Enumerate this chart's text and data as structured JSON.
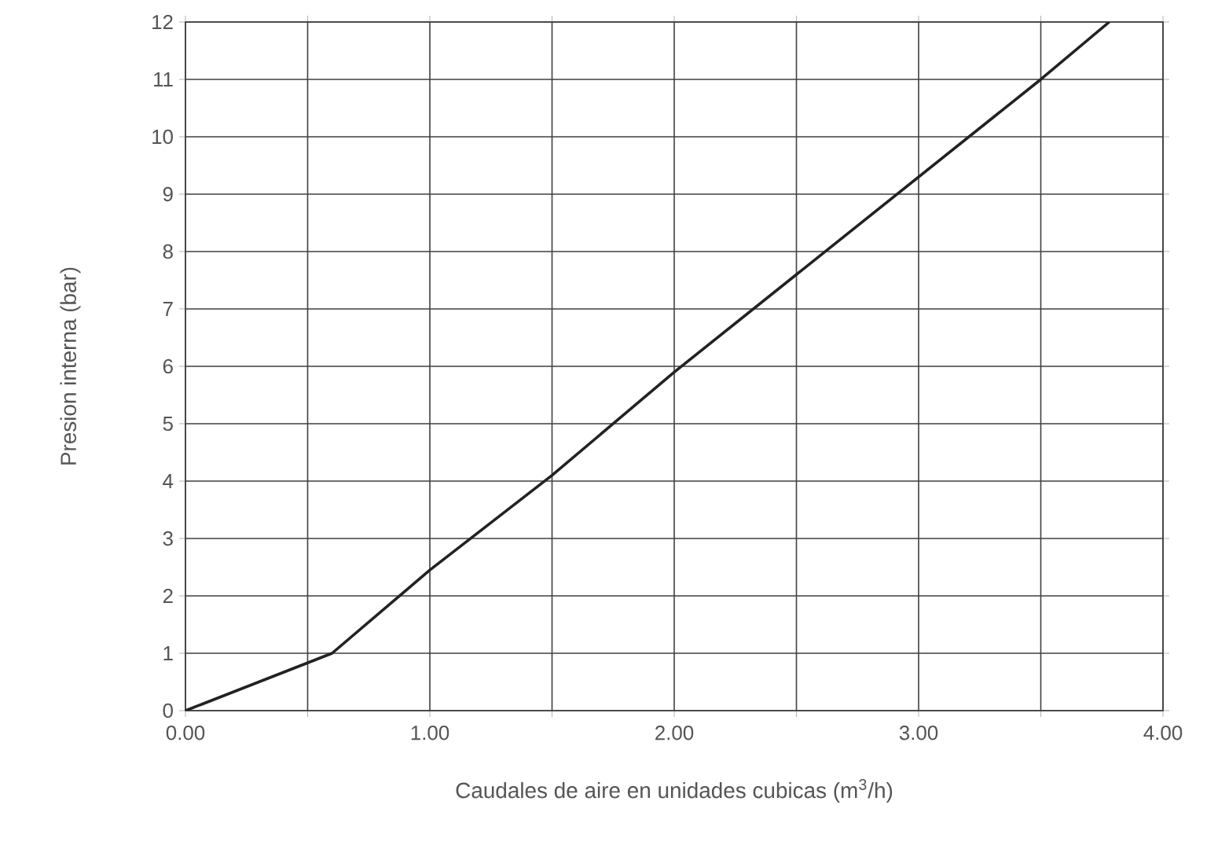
{
  "chart_data": {
    "type": "line",
    "xlabel": "Caudales de aire en unidades cubicas (m$^{3}$/h)",
    "ylabel": "Presion interna (bar)",
    "x": [
      0,
      0.6,
      1.0,
      1.5,
      2.0,
      2.5,
      3.0,
      3.5,
      3.78
    ],
    "values": [
      0,
      1,
      2.45,
      4.1,
      5.9,
      7.6,
      9.3,
      11,
      12
    ],
    "color": "#222222",
    "xlim": [
      0,
      4
    ],
    "ylim": [
      0,
      12
    ],
    "xticks": [
      {
        "value": 0,
        "label": "0.00"
      },
      {
        "value": 0.5,
        "label": null
      },
      {
        "value": 1,
        "label": "1.00"
      },
      {
        "value": 1.5,
        "label": null
      },
      {
        "value": 2,
        "label": "2.00"
      },
      {
        "value": 2.5,
        "label": null
      },
      {
        "value": 3,
        "label": "3.00"
      },
      {
        "value": 3.5,
        "label": null
      },
      {
        "value": 4,
        "label": "4.00"
      }
    ],
    "yticks": [
      0,
      1,
      2,
      3,
      4,
      5,
      6,
      7,
      8,
      9,
      10,
      11,
      12
    ],
    "grid": true,
    "marker": "none",
    "line_style": "solid"
  }
}
